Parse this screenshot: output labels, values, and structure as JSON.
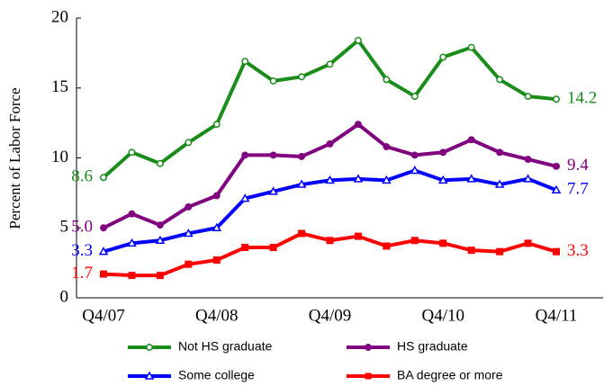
{
  "chart_data": {
    "type": "line",
    "y_label": "Percent of Labor Force",
    "categories": [
      "Q4/07",
      null,
      null,
      null,
      "Q4/08",
      null,
      null,
      null,
      "Q4/09",
      null,
      null,
      null,
      "Q4/10",
      null,
      null,
      null,
      "Q4/11"
    ],
    "ylim": [
      0,
      20
    ],
    "yticks": [
      0,
      5,
      10,
      15,
      20
    ],
    "grid": false,
    "legend": "bottom",
    "series": [
      {
        "name": "Not HS graduate",
        "color": "#1a8c1a",
        "marker": "circle-open",
        "values": [
          8.6,
          10.4,
          9.6,
          11.1,
          12.4,
          16.9,
          15.5,
          15.8,
          16.7,
          18.4,
          15.6,
          14.4,
          17.2,
          17.9,
          15.6,
          14.4,
          14.2
        ],
        "value_labels": [
          "8.6",
          null,
          null,
          null,
          null,
          null,
          null,
          null,
          null,
          null,
          null,
          null,
          null,
          null,
          null,
          null,
          "14.2"
        ]
      },
      {
        "name": "HS graduate",
        "color": "#800080",
        "marker": "circle",
        "values": [
          5.0,
          6.0,
          5.2,
          6.5,
          7.3,
          10.2,
          10.2,
          10.1,
          11.0,
          12.4,
          10.8,
          10.2,
          10.4,
          11.3,
          10.4,
          9.9,
          9.4
        ],
        "value_labels": [
          "5.0",
          null,
          null,
          null,
          null,
          null,
          null,
          null,
          null,
          null,
          null,
          null,
          null,
          null,
          null,
          null,
          "9.4"
        ]
      },
      {
        "name": "Some college",
        "color": "#0000ff",
        "marker": "triangle-open",
        "values": [
          3.3,
          3.9,
          4.1,
          4.6,
          5.0,
          7.1,
          7.6,
          8.1,
          8.4,
          8.5,
          8.4,
          9.1,
          8.4,
          8.5,
          8.1,
          8.5,
          7.7
        ],
        "value_labels": [
          "3.3",
          null,
          null,
          null,
          null,
          null,
          null,
          null,
          null,
          null,
          null,
          null,
          null,
          null,
          null,
          null,
          "7.7"
        ]
      },
      {
        "name": "BA degree or more",
        "color": "#ff0000",
        "marker": "square",
        "values": [
          1.7,
          1.6,
          1.6,
          2.4,
          2.7,
          3.6,
          3.6,
          4.6,
          4.1,
          4.4,
          3.7,
          4.1,
          3.9,
          3.4,
          3.3,
          3.9,
          3.3
        ],
        "value_labels": [
          "1.7",
          null,
          null,
          null,
          null,
          null,
          null,
          null,
          null,
          null,
          null,
          null,
          null,
          null,
          null,
          null,
          "3.3"
        ]
      }
    ]
  }
}
